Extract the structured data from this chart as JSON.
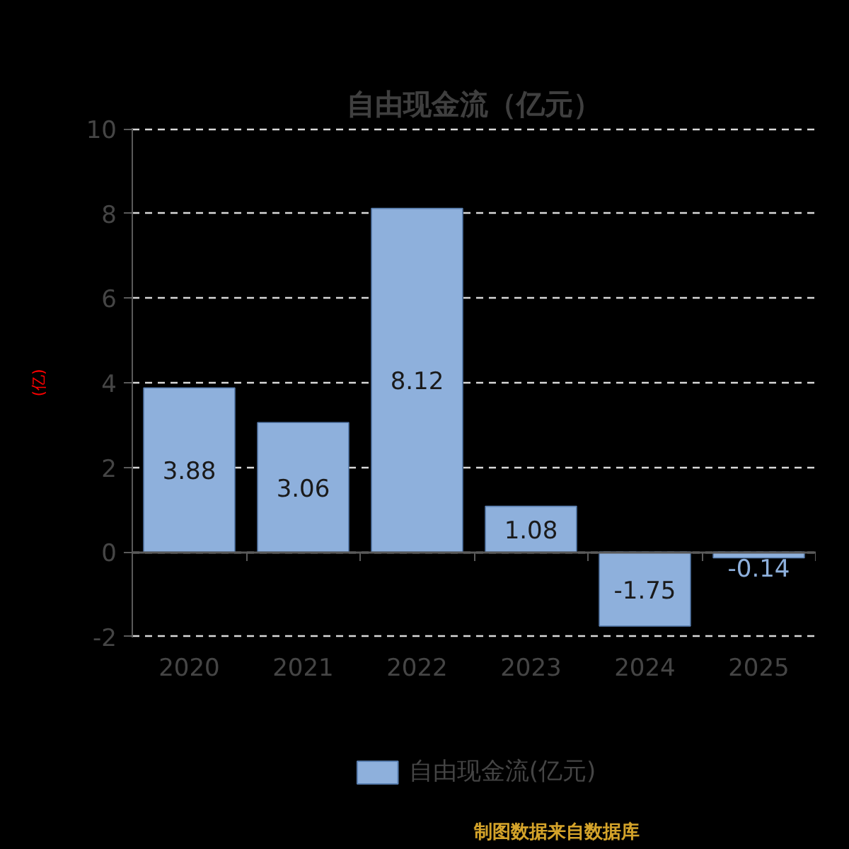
{
  "chart_data": {
    "type": "bar",
    "title": "自由现金流（亿元）",
    "ylabel": "(亿)",
    "categories": [
      "2020",
      "2021",
      "2022",
      "2023",
      "2024",
      "2025"
    ],
    "series": [
      {
        "name": "自由现金流(亿元)",
        "color": "#8eb0dc",
        "values": [
          3.88,
          3.06,
          8.12,
          1.08,
          -1.75,
          -0.14
        ]
      }
    ],
    "ylim": [
      -2,
      10
    ],
    "yticks": [
      -2,
      0,
      2,
      4,
      6,
      8,
      10
    ],
    "grid": "y",
    "legend": "bottom",
    "data_labels": true,
    "annotations": [
      "制图数据来自数据库"
    ]
  }
}
